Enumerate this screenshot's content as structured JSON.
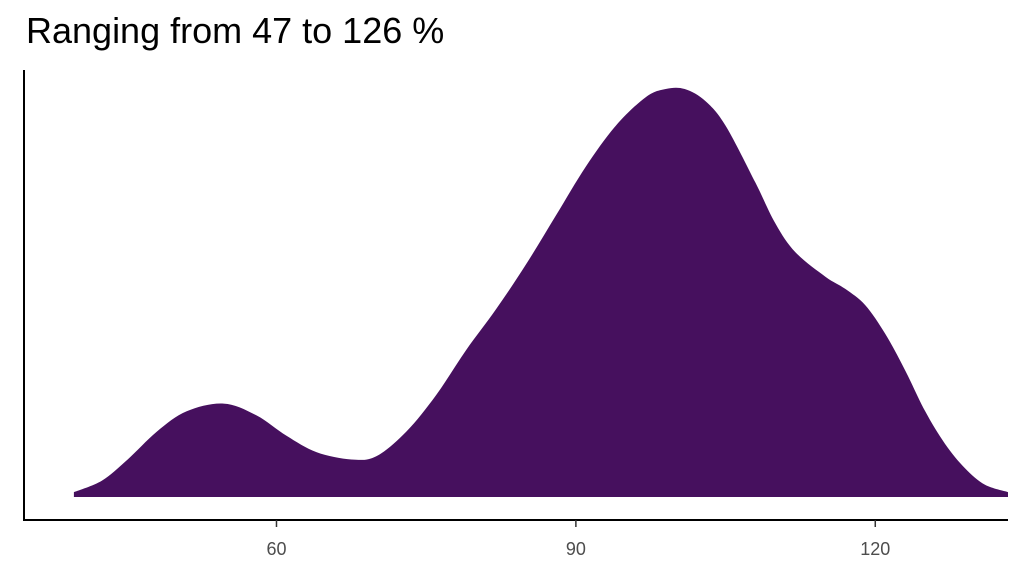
{
  "chart_data": {
    "type": "area",
    "title": "Ranging from 47 to 126 %",
    "xlabel": "",
    "ylabel": "",
    "xlim": [
      34.7,
      133.3
    ],
    "ylim": [
      0,
      1
    ],
    "xticks": [
      60,
      90,
      120
    ],
    "xtick_labels": [
      "60",
      "90",
      "120"
    ],
    "grid": false,
    "fill_color": "#46105E",
    "series": [
      {
        "x": [
          39.7,
          42.5,
          45.0,
          48.0,
          51.0,
          54.7,
          58.0,
          61.0,
          64.0,
          67.5,
          70.0,
          73.0,
          76.0,
          79.0,
          82.0,
          85.0,
          88.0,
          91.0,
          94.0,
          97.0,
          99.0,
          100.9,
          103.0,
          105.0,
          108.0,
          110.0,
          112.0,
          115.0,
          117.0,
          119.0,
          121.0,
          123.0,
          125.0,
          127.0,
          129.0,
          131.0,
          133.3
        ],
        "y": [
          0.012,
          0.04,
          0.09,
          0.16,
          0.21,
          0.229,
          0.2,
          0.15,
          0.11,
          0.092,
          0.1,
          0.16,
          0.25,
          0.36,
          0.46,
          0.57,
          0.69,
          0.81,
          0.91,
          0.98,
          1.0,
          1.0,
          0.97,
          0.91,
          0.77,
          0.67,
          0.6,
          0.54,
          0.51,
          0.47,
          0.4,
          0.31,
          0.21,
          0.13,
          0.07,
          0.03,
          0.012
        ]
      }
    ]
  }
}
